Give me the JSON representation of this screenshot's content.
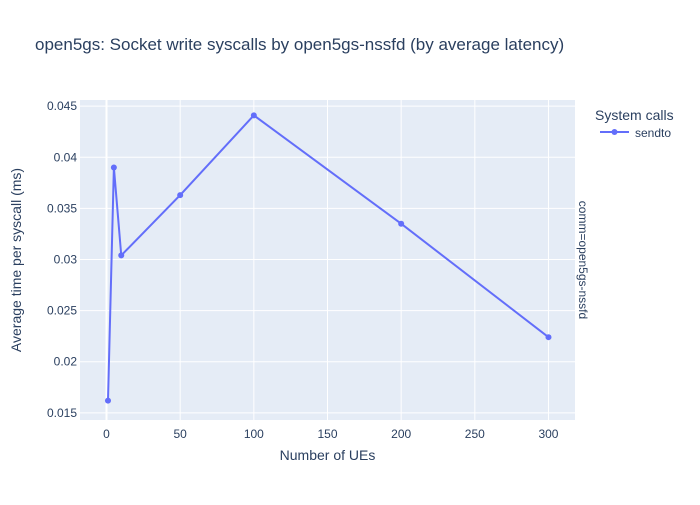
{
  "chart_data": {
    "type": "line",
    "title": "open5gs: Socket write syscalls by open5gs-nssfd (by average latency)",
    "xlabel": "Number of UEs",
    "ylabel": "Average time per syscall (ms)",
    "facet_label": "comm=open5gs-nssfd",
    "legend_title": "System calls",
    "legend_position": "top-right",
    "grid": true,
    "xlim": [
      -18,
      318
    ],
    "ylim": [
      0.0143,
      0.0456
    ],
    "x_ticks": [
      0,
      50,
      100,
      150,
      200,
      250,
      300
    ],
    "x_tick_labels": [
      "0",
      "50",
      "100",
      "150",
      "200",
      "250",
      "300"
    ],
    "y_ticks": [
      0.015,
      0.02,
      0.025,
      0.03,
      0.035,
      0.04,
      0.045
    ],
    "y_tick_labels": [
      "0.015",
      "0.02",
      "0.025",
      "0.03",
      "0.035",
      "0.04",
      "0.045"
    ],
    "series": [
      {
        "name": "sendto",
        "x": [
          1,
          5,
          10,
          50,
          100,
          200,
          300
        ],
        "values": [
          0.0162,
          0.039,
          0.0304,
          0.0363,
          0.0441,
          0.0335,
          0.0224
        ]
      }
    ]
  },
  "colors": {
    "plot_background": "#e5ecf6",
    "grid": "#ffffff",
    "series": "#636efa",
    "text": "#2a3f5f"
  }
}
